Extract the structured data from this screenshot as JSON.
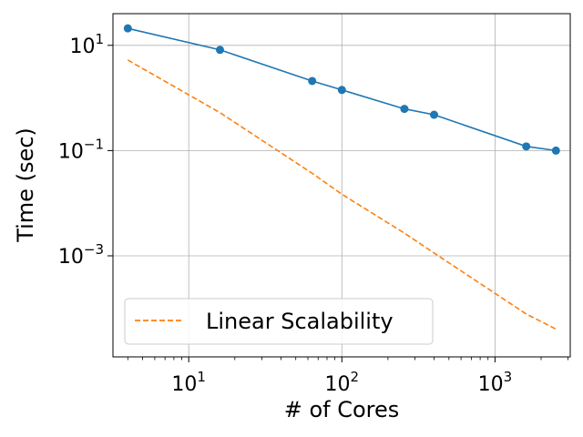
{
  "chart_data": {
    "type": "line",
    "xscale": "log",
    "yscale": "log",
    "xlabel": "# of Cores",
    "ylabel": "Time (sec)",
    "xlim": [
      3.2,
      3100
    ],
    "ylim": [
      1.2e-05,
      40
    ],
    "grid": true,
    "legend_position": "lower-left",
    "x_ticks": [
      {
        "value": 10,
        "base": "10",
        "exp": "1"
      },
      {
        "value": 100,
        "base": "10",
        "exp": "2"
      },
      {
        "value": 1000,
        "base": "10",
        "exp": "3"
      }
    ],
    "y_ticks": [
      {
        "value": 10,
        "base": "10",
        "exp": "1"
      },
      {
        "value": 0.1,
        "base": "10",
        "exp": "−1"
      },
      {
        "value": 0.001,
        "base": "10",
        "exp": "−3"
      }
    ],
    "series": [
      {
        "name": "",
        "color": "#1f77b4",
        "style": "solid",
        "marker": "circle",
        "x": [
          4,
          16,
          64,
          100,
          256,
          400,
          1600,
          2500
        ],
        "y": [
          21,
          8.2,
          2.1,
          1.42,
          0.62,
          0.48,
          0.12,
          0.1
        ]
      },
      {
        "name": "Linear Scalability",
        "color": "#ff7f0e",
        "style": "dashed",
        "marker": "none",
        "x": [
          4,
          16,
          64,
          100,
          256,
          400,
          1600,
          2500
        ],
        "y": [
          5.25,
          0.525,
          0.037,
          0.0148,
          0.0027,
          0.00113,
          7.83e-05,
          4.05e-05
        ]
      }
    ]
  }
}
